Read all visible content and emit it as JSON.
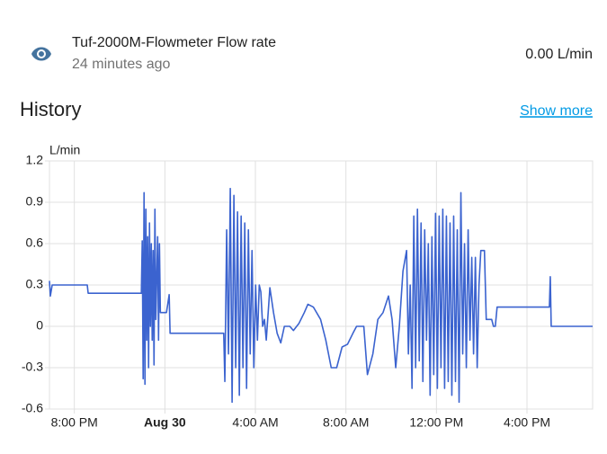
{
  "header": {
    "name": "Tuf-2000M-Flowmeter Flow rate",
    "time": "24 minutes ago",
    "state": "0.00 L/min"
  },
  "history": {
    "title": "History",
    "link": "Show more"
  },
  "chart_data": {
    "type": "line",
    "ylabel": "L/min",
    "color": "#3b63cf",
    "grid": true,
    "xlim": [
      18.9,
      42.9
    ],
    "ylim": [
      -0.6,
      1.2
    ],
    "yticks": [
      1.2,
      0.9,
      0.6,
      0.3,
      0,
      -0.3,
      -0.6
    ],
    "xticks": [
      {
        "value": 20,
        "label": "8:00 PM"
      },
      {
        "value": 24,
        "label": "Aug 30"
      },
      {
        "value": 28,
        "label": "4:00 AM"
      },
      {
        "value": 32,
        "label": "8:00 AM"
      },
      {
        "value": 36,
        "label": "12:00 PM"
      },
      {
        "value": 40,
        "label": "4:00 PM"
      }
    ],
    "x": [
      18.9,
      18.94,
      19.02,
      19.1,
      20.57,
      20.61,
      22.96,
      23.0,
      23.04,
      23.08,
      23.12,
      23.16,
      23.2,
      23.24,
      23.28,
      23.32,
      23.36,
      23.4,
      23.44,
      23.48,
      23.52,
      23.56,
      23.6,
      23.68,
      23.72,
      23.76,
      23.8,
      23.87,
      24.07,
      24.19,
      24.23,
      26.6,
      26.65,
      26.73,
      26.81,
      26.89,
      26.97,
      27.05,
      27.13,
      27.21,
      27.29,
      27.37,
      27.45,
      27.53,
      27.61,
      27.69,
      27.77,
      27.85,
      27.93,
      28.01,
      28.09,
      28.17,
      28.24,
      28.32,
      28.4,
      28.48,
      28.64,
      28.8,
      28.96,
      29.12,
      29.28,
      29.52,
      29.68,
      29.92,
      30.16,
      30.32,
      30.56,
      30.88,
      31.11,
      31.35,
      31.59,
      31.83,
      32.07,
      32.31,
      32.47,
      32.79,
      32.95,
      33.19,
      33.41,
      33.64,
      33.88,
      34.04,
      34.2,
      34.36,
      34.52,
      34.68,
      34.76,
      34.84,
      34.92,
      35.0,
      35.08,
      35.16,
      35.24,
      35.32,
      35.4,
      35.48,
      35.56,
      35.64,
      35.72,
      35.8,
      35.88,
      35.96,
      36.04,
      36.12,
      36.2,
      36.28,
      36.36,
      36.44,
      36.52,
      36.6,
      36.68,
      36.76,
      36.84,
      36.92,
      37.0,
      37.08,
      37.16,
      37.24,
      37.32,
      37.4,
      37.48,
      37.56,
      37.64,
      37.72,
      37.8,
      37.88,
      37.96,
      38.12,
      38.2,
      38.44,
      38.52,
      38.6,
      38.68,
      40.99,
      41.03,
      41.07,
      42.9
    ],
    "values": [
      0.33,
      0.22,
      0.3,
      0.3,
      0.3,
      0.24,
      0.24,
      0.62,
      -0.38,
      0.97,
      -0.42,
      0.85,
      -0.1,
      0.65,
      -0.3,
      0.75,
      0.0,
      0.6,
      -0.1,
      0.55,
      -0.28,
      0.85,
      0.05,
      0.65,
      -0.1,
      0.6,
      0.1,
      0.1,
      0.1,
      0.23,
      -0.05,
      -0.05,
      -0.4,
      0.7,
      -0.2,
      1.0,
      -0.55,
      0.95,
      -0.3,
      0.83,
      -0.5,
      0.8,
      -0.3,
      0.75,
      -0.45,
      0.7,
      -0.2,
      0.55,
      -0.3,
      0.3,
      -0.1,
      0.3,
      0.25,
      0.0,
      0.05,
      -0.1,
      0.28,
      0.1,
      -0.05,
      -0.12,
      0.0,
      0.0,
      -0.03,
      0.02,
      0.1,
      0.16,
      0.14,
      0.05,
      -0.1,
      -0.3,
      -0.3,
      -0.15,
      -0.13,
      -0.05,
      0.0,
      0.0,
      -0.35,
      -0.2,
      0.05,
      0.1,
      0.22,
      0.05,
      -0.3,
      0.0,
      0.4,
      0.55,
      -0.2,
      0.3,
      -0.45,
      0.8,
      -0.3,
      0.85,
      -0.25,
      0.75,
      -0.4,
      0.7,
      -0.1,
      0.6,
      -0.5,
      0.65,
      -0.35,
      0.82,
      -0.45,
      0.8,
      -0.3,
      0.85,
      -0.45,
      0.8,
      -0.4,
      0.75,
      -0.5,
      0.8,
      -0.4,
      0.7,
      -0.55,
      0.97,
      -0.2,
      0.6,
      -0.3,
      0.7,
      -0.1,
      0.5,
      -0.2,
      0.5,
      -0.3,
      0.3,
      0.55,
      0.55,
      0.05,
      0.05,
      0.0,
      0.0,
      0.14,
      0.14,
      0.36,
      0.0,
      0.0
    ]
  }
}
